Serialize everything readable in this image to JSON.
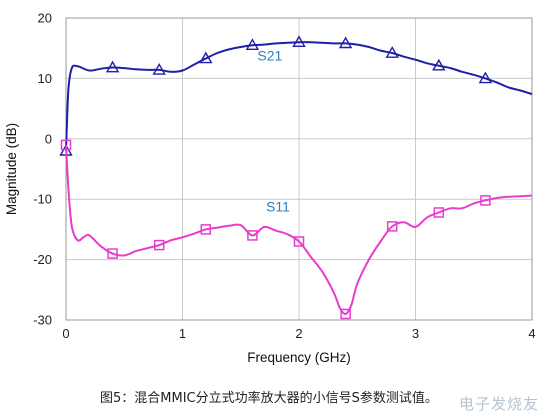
{
  "chart_data": {
    "type": "line",
    "title": "",
    "xlabel": "Frequency (GHz)",
    "ylabel": "Magnitude (dB)",
    "xlim": [
      0,
      4
    ],
    "ylim": [
      -30,
      20
    ],
    "xticks": [
      0,
      1,
      2,
      3,
      4
    ],
    "yticks": [
      20,
      10,
      0,
      -10,
      -20,
      -30
    ],
    "grid": true,
    "series": [
      {
        "name": "S21",
        "color": "#1f1fa8",
        "marker": "triangle",
        "x": [
          0.0,
          0.02,
          0.05,
          0.1,
          0.2,
          0.3,
          0.4,
          0.5,
          0.6,
          0.7,
          0.8,
          0.9,
          1.0,
          1.1,
          1.2,
          1.3,
          1.4,
          1.5,
          1.6,
          1.7,
          1.8,
          1.9,
          2.0,
          2.1,
          2.2,
          2.3,
          2.4,
          2.5,
          2.6,
          2.7,
          2.8,
          2.9,
          3.0,
          3.1,
          3.2,
          3.3,
          3.4,
          3.5,
          3.6,
          3.7,
          3.8,
          3.9,
          4.0
        ],
        "values": [
          -2.0,
          8.0,
          11.7,
          12.0,
          11.3,
          11.6,
          11.8,
          11.7,
          11.5,
          11.4,
          11.4,
          11.1,
          11.3,
          12.3,
          13.3,
          14.2,
          14.8,
          15.2,
          15.5,
          15.6,
          15.8,
          15.9,
          16.0,
          16.0,
          15.9,
          15.8,
          15.8,
          15.6,
          15.2,
          14.6,
          14.2,
          13.6,
          13.1,
          12.5,
          12.1,
          11.7,
          11.1,
          10.6,
          10.0,
          9.3,
          8.5,
          8.0,
          7.4
        ],
        "marker_x": [
          0.0,
          0.4,
          0.8,
          1.2,
          1.6,
          2.0,
          2.4,
          2.8,
          3.2,
          3.6
        ],
        "marker_values": [
          -2.0,
          11.8,
          11.4,
          13.3,
          15.5,
          16.0,
          15.8,
          14.2,
          12.1,
          10.0
        ]
      },
      {
        "name": "S11",
        "color": "#e83ccc",
        "marker": "square",
        "x": [
          0.0,
          0.02,
          0.05,
          0.1,
          0.15,
          0.2,
          0.3,
          0.4,
          0.5,
          0.6,
          0.7,
          0.8,
          0.9,
          1.0,
          1.1,
          1.2,
          1.3,
          1.4,
          1.5,
          1.6,
          1.7,
          1.8,
          1.9,
          2.0,
          2.1,
          2.2,
          2.3,
          2.35,
          2.4,
          2.45,
          2.5,
          2.6,
          2.7,
          2.8,
          2.9,
          3.0,
          3.1,
          3.2,
          3.3,
          3.4,
          3.5,
          3.6,
          3.7,
          3.8,
          3.9,
          4.0
        ],
        "values": [
          -1.0,
          -8.0,
          -14.5,
          -16.8,
          -16.3,
          -16.0,
          -17.8,
          -19.0,
          -19.3,
          -18.6,
          -18.1,
          -17.6,
          -16.8,
          -16.3,
          -15.7,
          -15.0,
          -14.7,
          -14.4,
          -14.3,
          -16.0,
          -14.6,
          -15.2,
          -15.8,
          -17.0,
          -19.5,
          -22.0,
          -25.5,
          -28.0,
          -29.0,
          -27.5,
          -24.0,
          -20.0,
          -17.0,
          -14.5,
          -13.8,
          -14.6,
          -13.0,
          -12.2,
          -11.5,
          -11.5,
          -10.7,
          -10.2,
          -9.8,
          -9.6,
          -9.5,
          -9.4
        ],
        "marker_x": [
          0.0,
          0.4,
          0.8,
          1.2,
          1.6,
          2.0,
          2.4,
          2.8,
          3.2,
          3.6
        ],
        "marker_values": [
          -1.0,
          -19.0,
          -17.6,
          -15.0,
          -16.0,
          -17.0,
          -29.0,
          -14.5,
          -12.2,
          -10.2
        ]
      }
    ],
    "annotations": [
      {
        "text": "S21",
        "x": 1.75,
        "y": 13.0
      },
      {
        "text": "S11",
        "x": 1.82,
        "y": -12.0
      }
    ]
  },
  "caption": "图5：混合MMIC分立式功率放大器的小信号S参数测试值。",
  "watermark": "电子发烧友"
}
